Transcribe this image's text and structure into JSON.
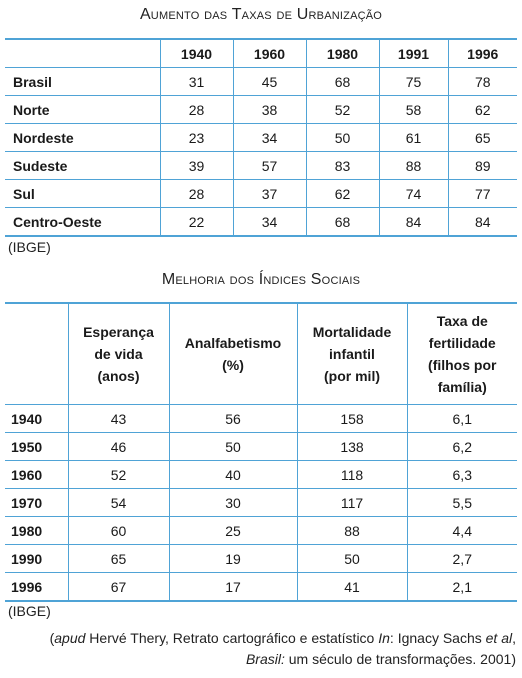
{
  "table1": {
    "title": "Aumento das Taxas de Urbanização",
    "headers": [
      "",
      "1940",
      "1960",
      "1980",
      "1991",
      "1996"
    ],
    "rows": [
      [
        "Brasil",
        "31",
        "45",
        "68",
        "75",
        "78"
      ],
      [
        "Norte",
        "28",
        "38",
        "52",
        "58",
        "62"
      ],
      [
        "Nordeste",
        "23",
        "34",
        "50",
        "61",
        "65"
      ],
      [
        "Sudeste",
        "39",
        "57",
        "83",
        "88",
        "89"
      ],
      [
        "Sul",
        "28",
        "37",
        "62",
        "74",
        "77"
      ],
      [
        "Centro-Oeste",
        "22",
        "34",
        "68",
        "84",
        "84"
      ]
    ],
    "source": "(IBGE)"
  },
  "table2": {
    "title": "Melhoria dos Índices Sociais",
    "headers": [
      "",
      [
        "Esperança",
        "de vida",
        "(anos)"
      ],
      [
        "Analfabetismo",
        "(%)"
      ],
      [
        "Mortalidade",
        "infantil",
        "(por mil)"
      ],
      [
        "Taxa de",
        "fertilidade",
        "(filhos por",
        "família)"
      ]
    ],
    "rows": [
      [
        "1940",
        "43",
        "56",
        "158",
        "6,1"
      ],
      [
        "1950",
        "46",
        "50",
        "138",
        "6,2"
      ],
      [
        "1960",
        "52",
        "40",
        "118",
        "6,3"
      ],
      [
        "1970",
        "54",
        "30",
        "117",
        "5,5"
      ],
      [
        "1980",
        "60",
        "25",
        "88",
        "4,4"
      ],
      [
        "1990",
        "65",
        "19",
        "50",
        "2,7"
      ],
      [
        "1996",
        "67",
        "17",
        "41",
        "2,1"
      ]
    ],
    "source": "(IBGE)"
  },
  "citation": {
    "line1": {
      "open": "(",
      "apud": "apud",
      "author": " Hervé Thery, Retrato cartográfico e estatístico ",
      "in": "In",
      "editor": ": Ignacy Sachs ",
      "etal": "et al",
      "comma": ","
    },
    "line2": {
      "book": "Brasil:",
      "rest": " um século de transformações. 2001)"
    }
  }
}
